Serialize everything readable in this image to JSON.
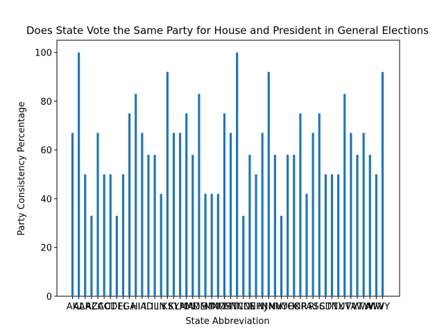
{
  "chart_data": {
    "type": "bar",
    "title": "Does State Vote the Same Party for House and President in General Elections",
    "x_label": "State Abbreviation",
    "y_label": "Party Consistency Percentage",
    "categories": [
      "AK",
      "AL",
      "AR",
      "AZ",
      "CA",
      "CO",
      "CT",
      "DE",
      "FL",
      "GA",
      "HI",
      "IA",
      "ID",
      "IL",
      "IN",
      "KS",
      "KY",
      "LA",
      "MA",
      "MD",
      "ME",
      "MI",
      "MN",
      "MO",
      "MS",
      "MT",
      "NC",
      "ND",
      "NE",
      "NH",
      "NJ",
      "NM",
      "NV",
      "NY",
      "OH",
      "OK",
      "OR",
      "PA",
      "RI",
      "SC",
      "SD",
      "TN",
      "TX",
      "UT",
      "VA",
      "VT",
      "WA",
      "WI",
      "WV",
      "WY"
    ],
    "values": [
      67,
      100,
      50,
      33,
      67,
      50,
      50,
      33,
      50,
      75,
      83,
      67,
      58,
      58,
      42,
      92,
      67,
      67,
      75,
      58,
      83,
      42,
      42,
      42,
      75,
      67,
      100,
      33,
      58,
      50,
      67,
      92,
      58,
      33,
      58,
      58,
      75,
      42,
      67,
      75,
      50,
      50,
      50,
      83,
      67,
      58,
      67,
      58,
      50,
      92
    ],
    "color": "#1f77b4",
    "ylim": [
      0,
      105
    ],
    "yticks": [
      0,
      20,
      40,
      60,
      80,
      100
    ],
    "grid": false
  }
}
